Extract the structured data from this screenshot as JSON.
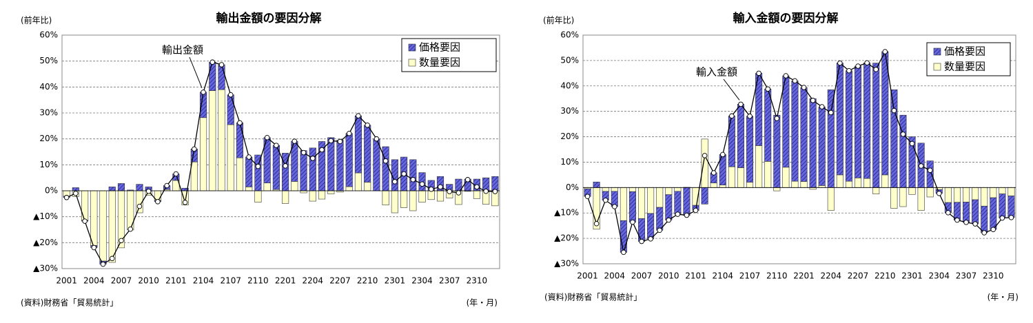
{
  "chart_data": [
    {
      "type": "bar",
      "stacked": true,
      "title": "輸出金額の要因分解",
      "y_label": "(前年比)",
      "source": "(資料)財務省「貿易統計」",
      "x_label": "(年・月)",
      "categories": [
        "2001",
        null,
        null,
        "2004",
        null,
        null,
        "2007",
        null,
        null,
        "2010",
        null,
        null,
        "2101",
        null,
        null,
        "2104",
        null,
        null,
        "2107",
        null,
        null,
        "2110",
        null,
        null,
        "2201",
        null,
        null,
        "2204",
        null,
        null,
        "2207",
        null,
        null,
        "2210",
        null,
        null,
        "2301",
        null,
        null,
        "2304",
        null,
        null,
        "2307",
        null,
        null,
        "2310",
        null,
        null
      ],
      "series": [
        {
          "name": "数量要因",
          "color": "#ffffcc",
          "values": [
            -2.1,
            -2.2,
            -11.4,
            -21.1,
            -27.1,
            -27.6,
            -22.0,
            -15.1,
            -8.5,
            -1.7,
            -3.7,
            0.5,
            4.0,
            -5.5,
            11.1,
            28.2,
            38.6,
            39.0,
            25.5,
            12.7,
            1.5,
            -4.4,
            3.0,
            0.5,
            -4.9,
            3.6,
            -0.8,
            -4.0,
            -3.2,
            -1.2,
            -0.5,
            1.6,
            6.9,
            3.3,
            0,
            -5.5,
            -8.5,
            -6.5,
            -7.7,
            -4.4,
            -3.4,
            -4.0,
            -2.8,
            -5.3,
            -0.2,
            -3.0,
            -5.2,
            -5.8
          ]
        },
        {
          "name": "価格要因",
          "color": "#6666dd",
          "hatch": true,
          "values": [
            -0.5,
            1.2,
            -0.3,
            -0.8,
            -1.2,
            1.5,
            2.8,
            0.3,
            2.5,
            1.5,
            -0.5,
            1.5,
            2.5,
            1.0,
            5.0,
            9.8,
            11.0,
            9.6,
            11.5,
            13.5,
            11.5,
            13.8,
            17.5,
            17.0,
            14.5,
            15.5,
            15.5,
            16.5,
            19.0,
            20.5,
            19.5,
            20.5,
            22.0,
            22.0,
            20.0,
            17.0,
            12.0,
            13.0,
            12.0,
            7.0,
            4.0,
            5.5,
            2.5,
            4.5,
            4.5,
            4.5,
            5.0,
            5.5
          ]
        }
      ],
      "line": {
        "name": "輸出金額",
        "color": "#000000",
        "values": [
          -2.6,
          -1,
          -11.7,
          -21.9,
          -28.3,
          -26.1,
          -19.2,
          -14.8,
          -6.0,
          -0.2,
          -4.2,
          2.0,
          6.5,
          -4.5,
          16.1,
          38.0,
          49.6,
          48.6,
          37.0,
          26.2,
          13.0,
          9.4,
          20.5,
          17.5,
          9.6,
          19.1,
          14.7,
          12.5,
          15.8,
          19.3,
          19.0,
          22.1,
          28.9,
          25.3,
          20.0,
          11.5,
          3.5,
          6.5,
          4.3,
          2.6,
          0.6,
          1.5,
          -0.3,
          -0.8,
          4.3,
          1.5,
          -0.2,
          -0.3
        ]
      },
      "ylim": [
        -30,
        60
      ],
      "yticks": [
        {
          "value": -30,
          "label": "▲30%"
        },
        {
          "value": -20,
          "label": "▲20%"
        },
        {
          "value": -10,
          "label": "▲10%"
        },
        {
          "value": 0,
          "label": "0%"
        },
        {
          "value": 10,
          "label": "10%"
        },
        {
          "value": 20,
          "label": "20%"
        },
        {
          "value": 30,
          "label": "30%"
        },
        {
          "value": 40,
          "label": "40%"
        },
        {
          "value": 50,
          "label": "50%"
        },
        {
          "value": 60,
          "label": "60%"
        }
      ],
      "grid": true,
      "legend": "upper right"
    },
    {
      "type": "bar",
      "stacked": true,
      "title": "輸入金額の要因分解",
      "y_label": "(前年比)",
      "source": "(資料)財務省「貿易統計」",
      "x_label": "(年・月)",
      "categories": [
        "2001",
        null,
        null,
        "2004",
        null,
        null,
        "2007",
        null,
        null,
        "2010",
        null,
        null,
        "2101",
        null,
        null,
        "2104",
        null,
        null,
        "2107",
        null,
        null,
        "2110",
        null,
        null,
        "2201",
        null,
        null,
        "2204",
        null,
        null,
        "2207",
        null,
        null,
        "2210",
        null,
        null,
        "2301",
        null,
        null,
        "2304",
        null,
        null,
        "2307",
        null,
        null,
        "2310",
        null,
        null
      ],
      "series": [
        {
          "name": "数量要因",
          "color": "#ffffcc",
          "values": [
            -0.5,
            -16.4,
            -1.5,
            -1.5,
            -13.0,
            -1.6,
            -12.2,
            -10.2,
            -7.8,
            -2.8,
            -1.5,
            0.1,
            -7.0,
            19.1,
            1.8,
            1.0,
            8.2,
            7.8,
            2.1,
            16.5,
            10.3,
            -1.3,
            8.0,
            2.5,
            2.4,
            -0.7,
            0.8,
            -9.0,
            5.0,
            2.5,
            3.8,
            3.6,
            -2.5,
            5.0,
            -8.2,
            -7.5,
            -2.7,
            -9.0,
            -3.7,
            -0.8,
            -5.9,
            -5.8,
            -5.7,
            -4.8,
            -7.3,
            -4.0,
            -2.5,
            -3.3
          ]
        },
        {
          "name": "価格要因",
          "color": "#6666dd",
          "hatch": true,
          "values": [
            -3,
            2.2,
            -3.5,
            -6.0,
            -12.5,
            -12.0,
            -9.0,
            -10.0,
            -9.0,
            -10.0,
            -9.0,
            -11.0,
            -2.0,
            -6.5,
            4.0,
            12.0,
            20.0,
            25.0,
            26.0,
            28.5,
            28.5,
            28.5,
            36.0,
            39.5,
            37.0,
            35.0,
            31.0,
            38.5,
            44.0,
            43.5,
            44.0,
            45.5,
            49.0,
            48.5,
            38.5,
            28.5,
            20.0,
            17.5,
            10.5,
            -1.5,
            -4.0,
            -7.0,
            -8.0,
            -9.5,
            -10.5,
            -12.5,
            -9.5,
            -8.5
          ]
        }
      ],
      "line": {
        "name": "輸入金額",
        "color": "#000000",
        "values": [
          -3.5,
          -14.2,
          -5.0,
          -7.5,
          -25.5,
          -13.6,
          -21.2,
          -20.2,
          -16.8,
          -12.8,
          -10.5,
          -10.9,
          -9.0,
          12.6,
          5.8,
          13.0,
          28.2,
          32.8,
          28.1,
          45.0,
          38.8,
          27.2,
          44.0,
          42.0,
          39.4,
          34.3,
          31.8,
          29.5,
          49.0,
          46.0,
          47.8,
          49.1,
          46.5,
          53.5,
          30.3,
          21.0,
          17.3,
          8.5,
          6.8,
          -2.3,
          -9.9,
          -12.8,
          -13.7,
          -14.3,
          -17.8,
          -16.5,
          -12.0,
          -11.8
        ]
      },
      "ylim": [
        -30,
        60
      ],
      "yticks": [
        {
          "value": -30,
          "label": "▲30%"
        },
        {
          "value": -20,
          "label": "▲20%"
        },
        {
          "value": -10,
          "label": "▲10%"
        },
        {
          "value": 0,
          "label": "0%"
        },
        {
          "value": 10,
          "label": "10%"
        },
        {
          "value": 20,
          "label": "20%"
        },
        {
          "value": 30,
          "label": "30%"
        },
        {
          "value": 40,
          "label": "40%"
        },
        {
          "value": 50,
          "label": "50%"
        },
        {
          "value": 60,
          "label": "60%"
        }
      ],
      "grid": true,
      "legend": "upper right"
    }
  ]
}
